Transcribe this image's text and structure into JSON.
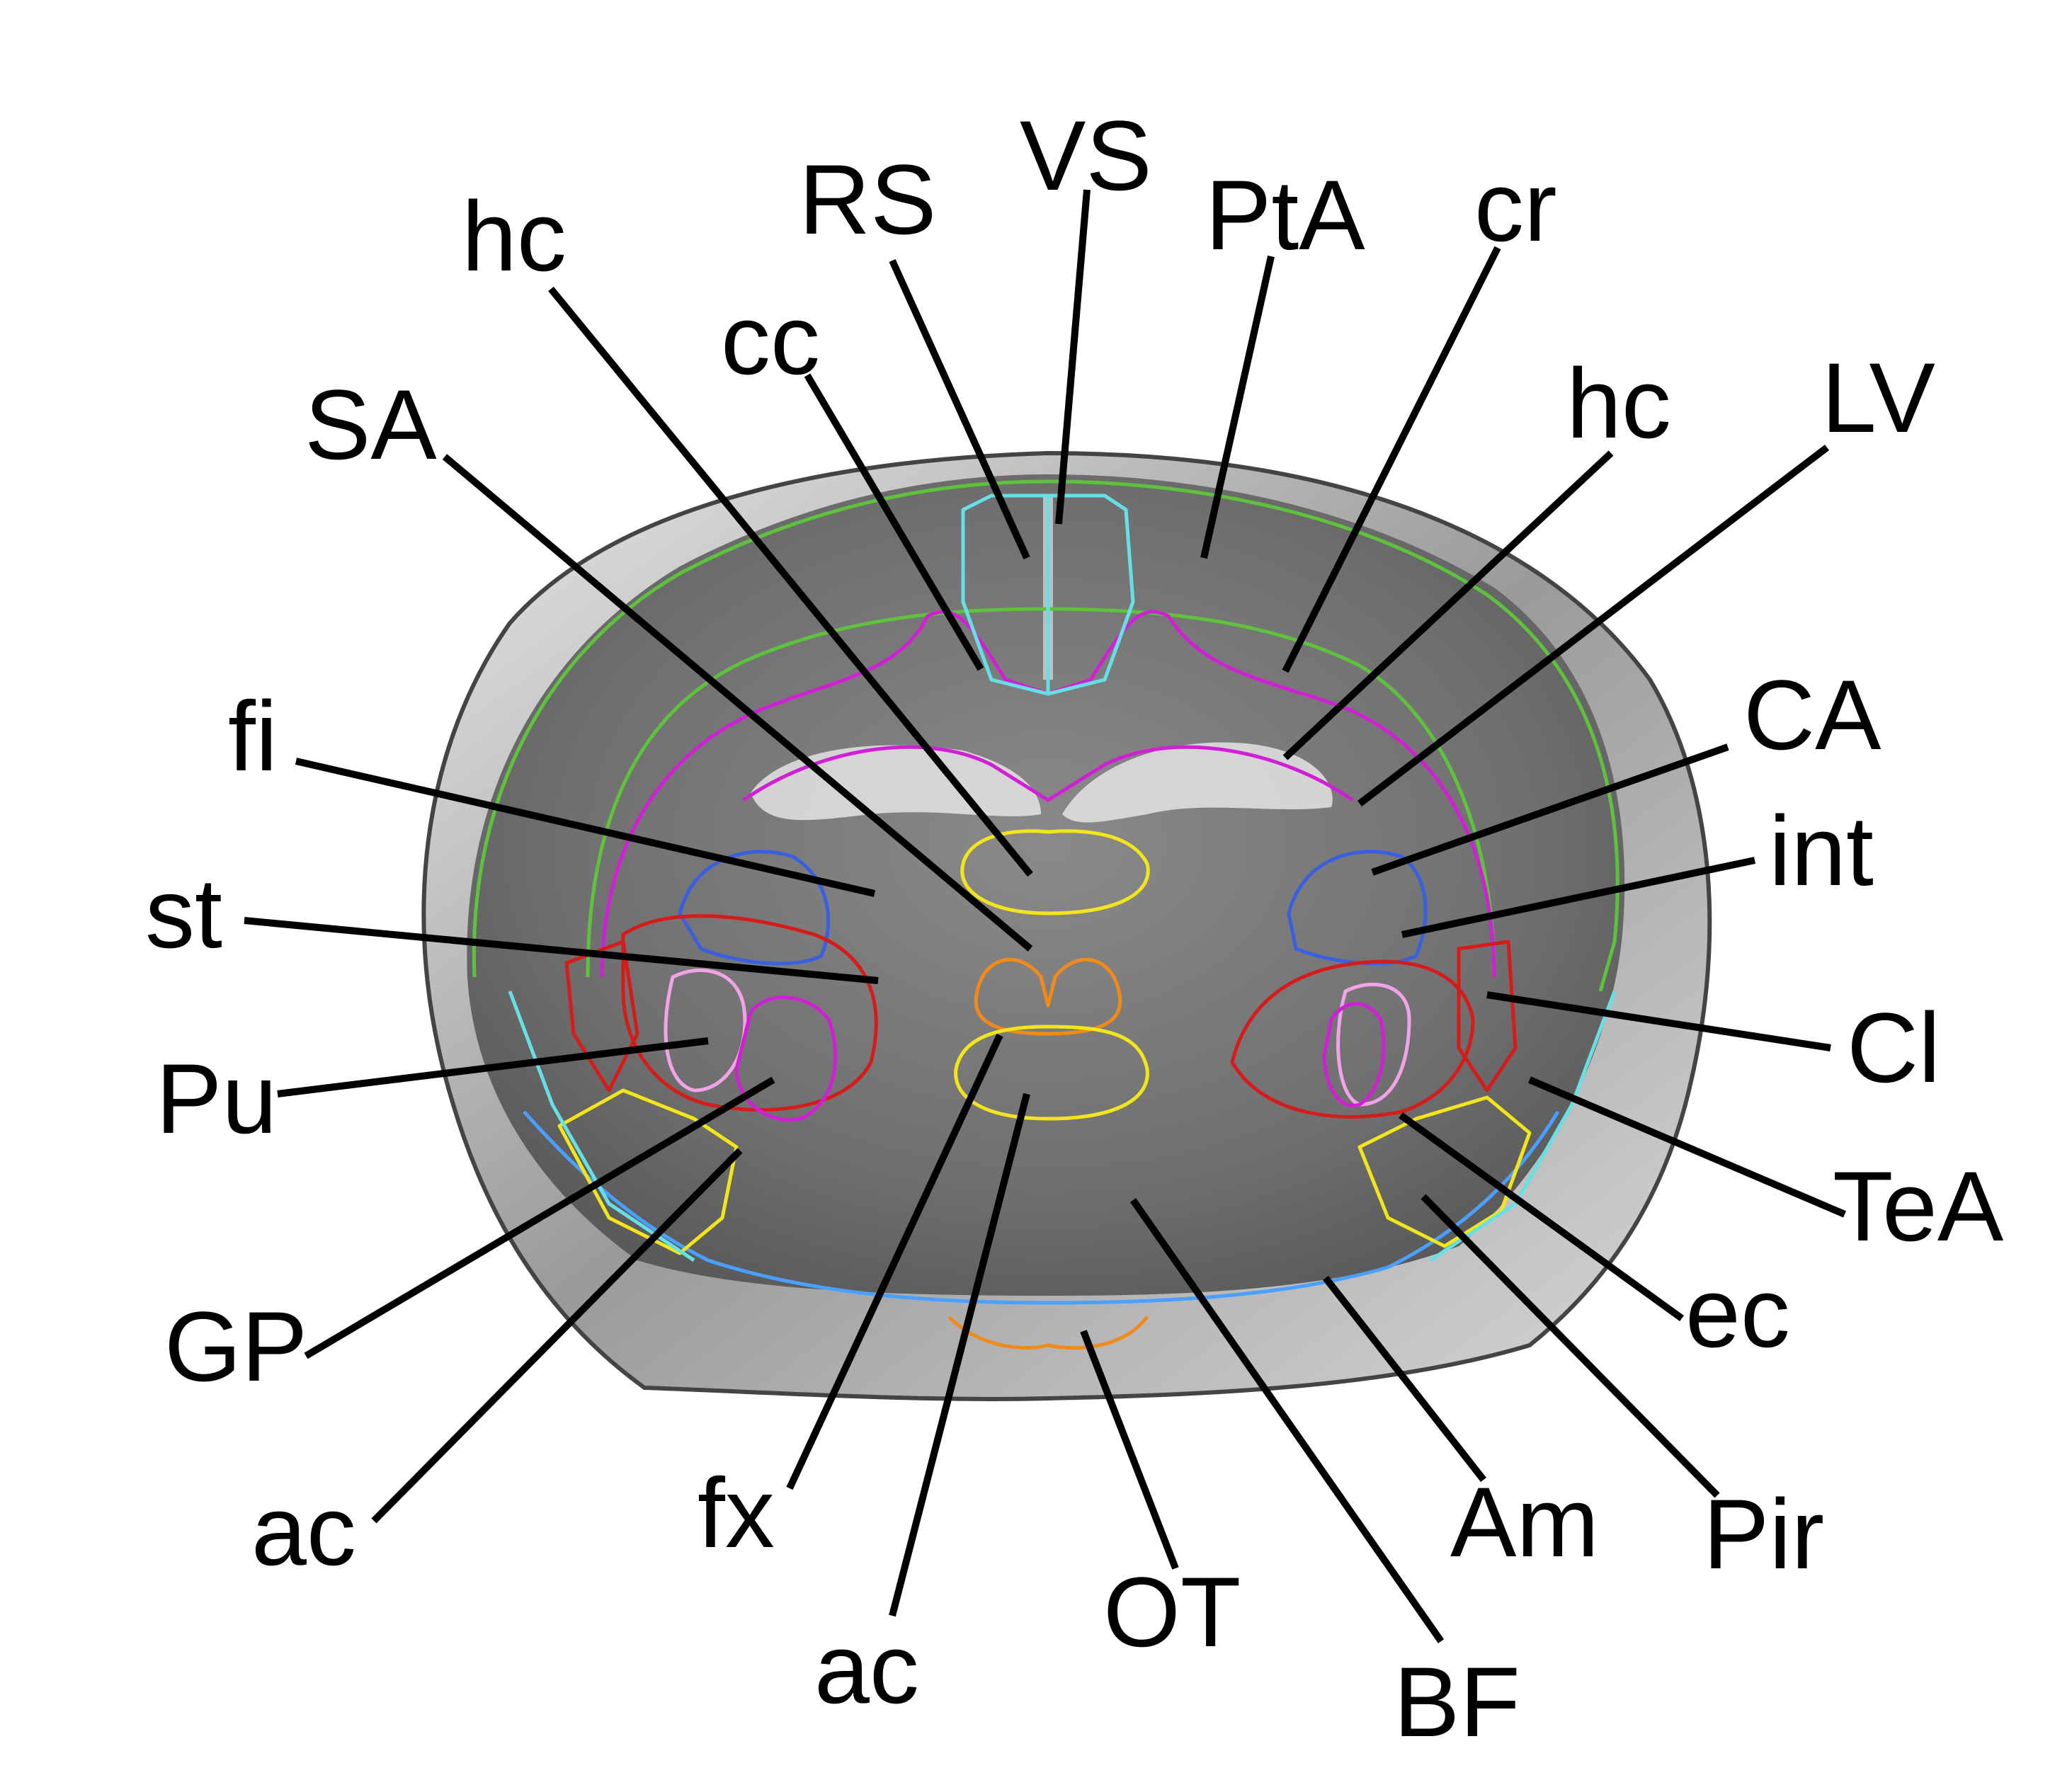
{
  "figure": {
    "colors": {
      "green": "#5fc23c",
      "magenta": "#d11fd6",
      "cyan": "#66e0e6",
      "blue": "#3a5fe0",
      "red": "#d61b1b",
      "yellow": "#f2e51b",
      "orange": "#f08a1a",
      "pink": "#f2a3e8",
      "lightblue": "#4aa0ff"
    },
    "labels": {
      "VS": "VS",
      "RS": "RS",
      "PtA": "PtA",
      "cr": "cr",
      "hc_left": "hc",
      "cc": "cc",
      "hc_right": "hc",
      "LV": "LV",
      "SA": "SA",
      "fi": "fi",
      "CA": "CA",
      "int": "int",
      "st": "st",
      "Cl": "Cl",
      "Pu": "Pu",
      "TeA": "TeA",
      "GP": "GP",
      "ec": "ec",
      "ac_left": "ac",
      "fx": "fx",
      "Am": "Am",
      "Pir": "Pir",
      "OT": "OT",
      "ac_center": "ac",
      "BF": "BF"
    }
  }
}
